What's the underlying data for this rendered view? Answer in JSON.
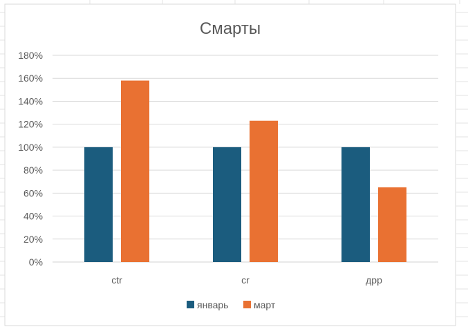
{
  "chart_data": {
    "type": "bar",
    "title": "Смарты",
    "categories": [
      "ctr",
      "cr",
      "дрр"
    ],
    "series": [
      {
        "name": "январь",
        "values": [
          1.0,
          1.0,
          1.0
        ],
        "color": "#1b5c7e"
      },
      {
        "name": "март",
        "values": [
          1.58,
          1.23,
          0.65
        ],
        "color": "#e97132"
      }
    ],
    "ylim": [
      0,
      1.8
    ],
    "yticks": [
      0,
      0.2,
      0.4,
      0.6,
      0.8,
      1.0,
      1.2,
      1.4,
      1.6,
      1.8
    ],
    "ytick_labels": [
      "0%",
      "20%",
      "40%",
      "60%",
      "80%",
      "100%",
      "120%",
      "140%",
      "160%",
      "180%"
    ],
    "grid": true,
    "legend": "bottom",
    "xlabel": "",
    "ylabel": ""
  }
}
